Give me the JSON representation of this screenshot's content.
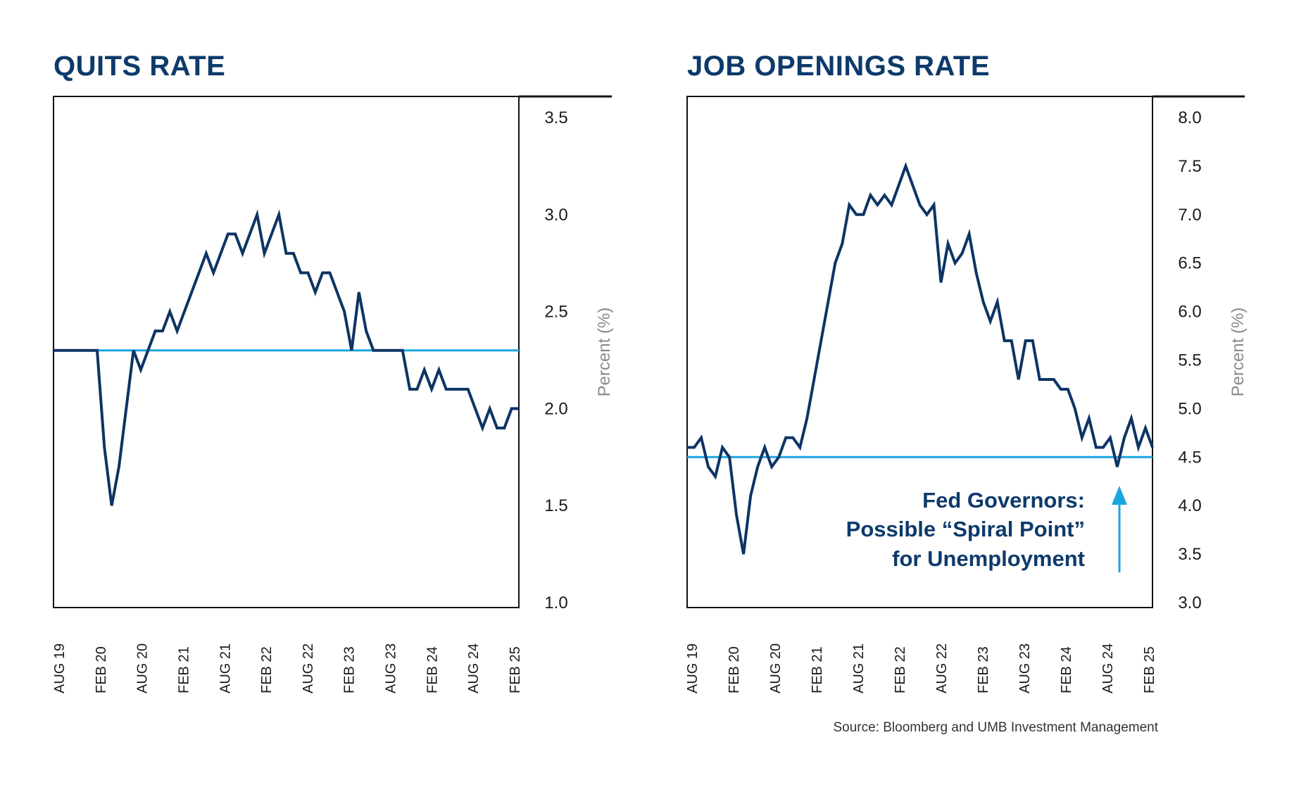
{
  "colors": {
    "series": "#0d3463",
    "reference": "#1ba6e0",
    "title": "#0d3a6b",
    "frame": "#111111"
  },
  "source": "Source: Bloomberg and UMB Investment Management",
  "chart_data": [
    {
      "type": "line",
      "title": "QUITS RATE",
      "ylabel": "Percent (%)",
      "ylim": [
        1.0,
        3.5
      ],
      "yticks": [
        "3.5",
        "3.0",
        "2.5",
        "2.0",
        "1.5",
        "1.0"
      ],
      "x_labels": [
        "AUG 19",
        "FEB 20",
        "AUG 20",
        "FEB 21",
        "AUG 21",
        "FEB 22",
        "AUG 22",
        "FEB 23",
        "AUG 23",
        "FEB 24",
        "AUG 24",
        "FEB 25"
      ],
      "reference_line": 2.3,
      "series": [
        {
          "name": "Quits Rate",
          "start": "AUG 19",
          "values": [
            2.3,
            2.3,
            2.3,
            2.3,
            2.3,
            2.3,
            2.3,
            1.8,
            1.5,
            1.7,
            2.0,
            2.3,
            2.2,
            2.3,
            2.4,
            2.4,
            2.5,
            2.4,
            2.5,
            2.6,
            2.7,
            2.8,
            2.7,
            2.8,
            2.9,
            2.9,
            2.8,
            2.9,
            3.0,
            2.8,
            2.9,
            3.0,
            2.8,
            2.8,
            2.7,
            2.7,
            2.6,
            2.7,
            2.7,
            2.6,
            2.5,
            2.3,
            2.6,
            2.4,
            2.3,
            2.3,
            2.3,
            2.3,
            2.3,
            2.1,
            2.1,
            2.2,
            2.1,
            2.2,
            2.1,
            2.1,
            2.1,
            2.1,
            2.0,
            1.9,
            2.0,
            1.9,
            1.9,
            2.0,
            2.0
          ]
        }
      ]
    },
    {
      "type": "line",
      "title": "JOB OPENINGS RATE",
      "ylabel": "Percent (%)",
      "ylim": [
        3.0,
        8.0
      ],
      "yticks": [
        "8.0",
        "7.5",
        "7.0",
        "6.5",
        "6.0",
        "5.5",
        "5.0",
        "4.5",
        "4.0",
        "3.5",
        "3.0"
      ],
      "x_labels": [
        "AUG 19",
        "FEB 20",
        "AUG 20",
        "FEB 21",
        "AUG 21",
        "FEB 22",
        "AUG 22",
        "FEB 23",
        "AUG 23",
        "FEB 24",
        "AUG 24",
        "FEB 25"
      ],
      "reference_line": 4.5,
      "annotation": {
        "lines": [
          "Fed Governors:",
          "Possible “Spiral Point”",
          "for Unemployment"
        ],
        "arrow": "up"
      },
      "series": [
        {
          "name": "Job Openings Rate",
          "start": "AUG 19",
          "values": [
            4.6,
            4.6,
            4.7,
            4.4,
            4.3,
            4.6,
            4.5,
            3.9,
            3.5,
            4.1,
            4.4,
            4.6,
            4.4,
            4.5,
            4.7,
            4.7,
            4.6,
            4.9,
            5.3,
            5.7,
            6.1,
            6.5,
            6.7,
            7.1,
            7.0,
            7.0,
            7.2,
            7.1,
            7.2,
            7.1,
            7.3,
            7.5,
            7.3,
            7.1,
            7.0,
            7.1,
            6.3,
            6.7,
            6.5,
            6.6,
            6.8,
            6.4,
            6.1,
            5.9,
            6.1,
            5.7,
            5.7,
            5.3,
            5.7,
            5.7,
            5.3,
            5.3,
            5.3,
            5.2,
            5.2,
            5.0,
            4.7,
            4.9,
            4.6,
            4.6,
            4.7,
            4.4,
            4.7,
            4.9,
            4.6,
            4.8,
            4.6
          ]
        }
      ]
    }
  ]
}
